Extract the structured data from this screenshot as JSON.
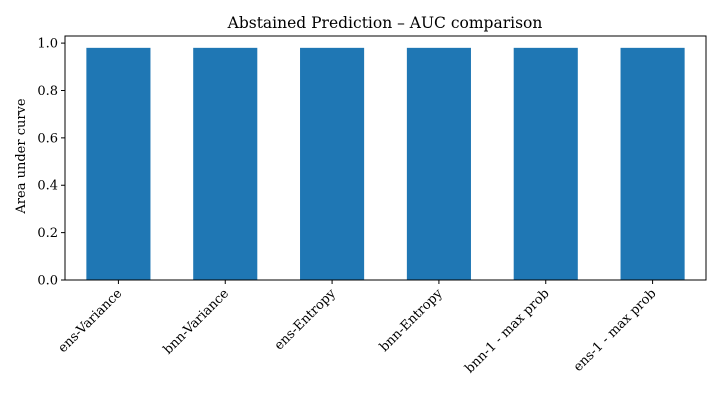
{
  "chart_data": {
    "type": "bar",
    "title": "Abstained Prediction – AUC comparison",
    "xlabel": "",
    "ylabel": "Area under curve",
    "categories": [
      "ens-Variance",
      "bnn-Variance",
      "ens-Entropy",
      "bnn-Entropy",
      "bnn-1 - max prob",
      "ens-1 - max prob"
    ],
    "values": [
      0.98,
      0.98,
      0.98,
      0.98,
      0.98,
      0.98
    ],
    "ylim": [
      0,
      1.03
    ],
    "yticks": [
      0.0,
      0.2,
      0.4,
      0.6,
      0.8,
      1.0
    ],
    "ytick_labels": [
      "0.0",
      "0.2",
      "0.4",
      "0.6",
      "0.8",
      "1.0"
    ],
    "bar_color": "#1f77b4",
    "grid": false,
    "legend": "none"
  }
}
